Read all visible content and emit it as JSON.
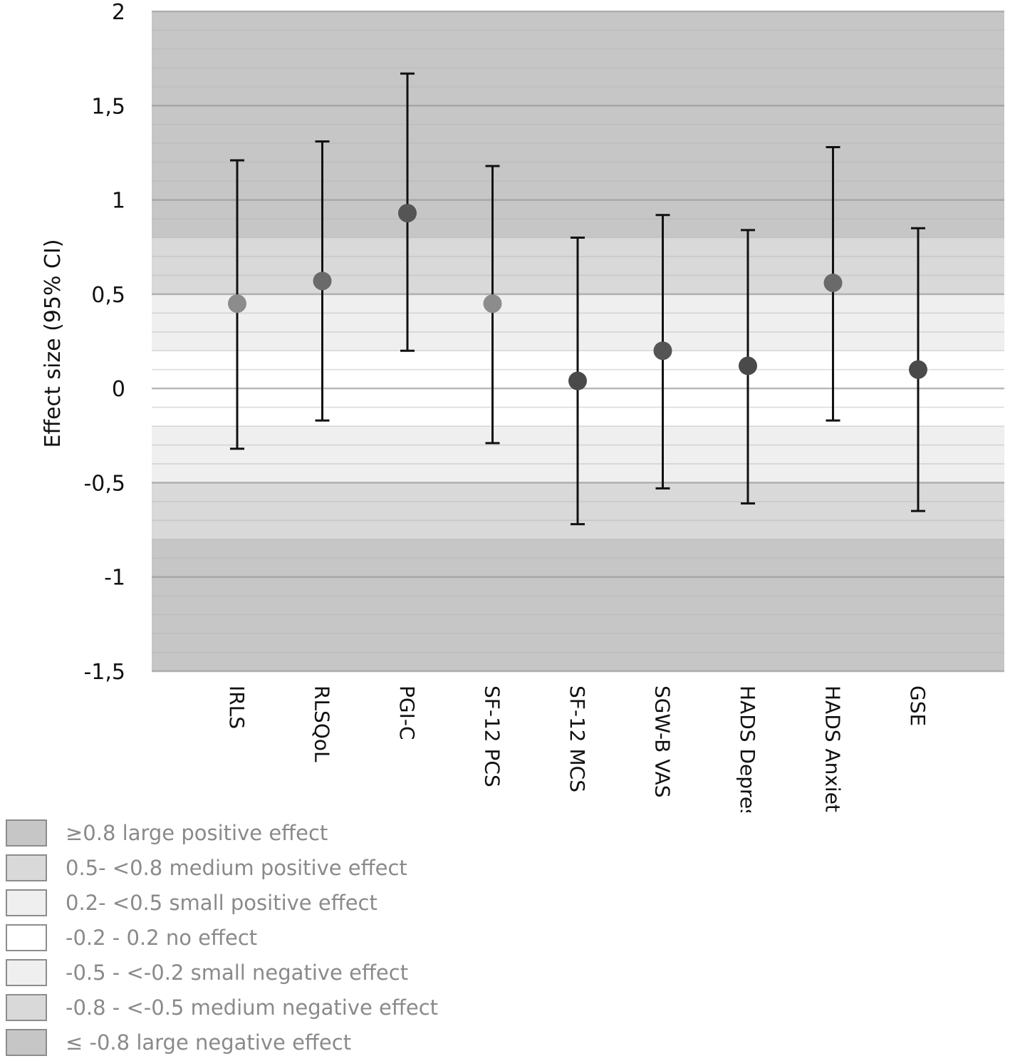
{
  "chart_data": {
    "type": "errorbar",
    "title": "",
    "xlabel": "",
    "ylabel": "Effect size (95% CI)",
    "ylim": [
      -1.5,
      2
    ],
    "yticks": [
      2,
      1.5,
      1,
      0.5,
      0,
      -0.5,
      -1,
      -1.5
    ],
    "ytick_labels": [
      "2",
      "1,5",
      "1",
      "0,5",
      "0",
      "-0,5",
      "-1",
      "-1,5"
    ],
    "categories": [
      "IRLS",
      "RLSQoL",
      "PGI-C",
      "SF-12 PCS",
      "SF-12 MCS",
      "SGW-B VAS",
      "HADS Depress.",
      "HADS Anxiety",
      "GSE"
    ],
    "values": [
      0.45,
      0.57,
      0.93,
      0.45,
      0.04,
      0.2,
      0.12,
      0.56,
      0.1
    ],
    "ci_lower": [
      -0.32,
      -0.17,
      0.2,
      -0.29,
      -0.72,
      -0.53,
      -0.61,
      -0.17,
      -0.65
    ],
    "ci_upper": [
      1.21,
      1.31,
      1.67,
      1.18,
      0.8,
      0.92,
      0.84,
      1.28,
      0.85
    ],
    "marker_colors": [
      "#8c8c8c",
      "#6a6a6a",
      "#555555",
      "#8c8c8c",
      "#4a4a4a",
      "#555555",
      "#4a4a4a",
      "#6a6a6a",
      "#4a4a4a"
    ],
    "bands": [
      {
        "label": "≥0.8 large positive effect",
        "from": 0.8,
        "to": 2,
        "color": "#c6c6c6"
      },
      {
        "label": "0.5- <0.8 medium positive effect",
        "from": 0.5,
        "to": 0.8,
        "color": "#d9d9d9"
      },
      {
        "label": "0.2- <0.5 small positive effect",
        "from": 0.2,
        "to": 0.5,
        "color": "#efefef"
      },
      {
        "label": "-0.2 - 0.2 no effect",
        "from": -0.2,
        "to": 0.2,
        "color": "#ffffff"
      },
      {
        "label": "-0.5 - <-0.2 small negative effect",
        "from": -0.5,
        "to": -0.2,
        "color": "#efefef"
      },
      {
        "label": "-0.8 - <-0.5 medium negative effect",
        "from": -0.8,
        "to": -0.5,
        "color": "#d9d9d9"
      },
      {
        "label": "≤ -0.8 large negative effect",
        "from": -1.5,
        "to": -0.8,
        "color": "#c6c6c6"
      }
    ],
    "legend_position": "bottom-left"
  }
}
